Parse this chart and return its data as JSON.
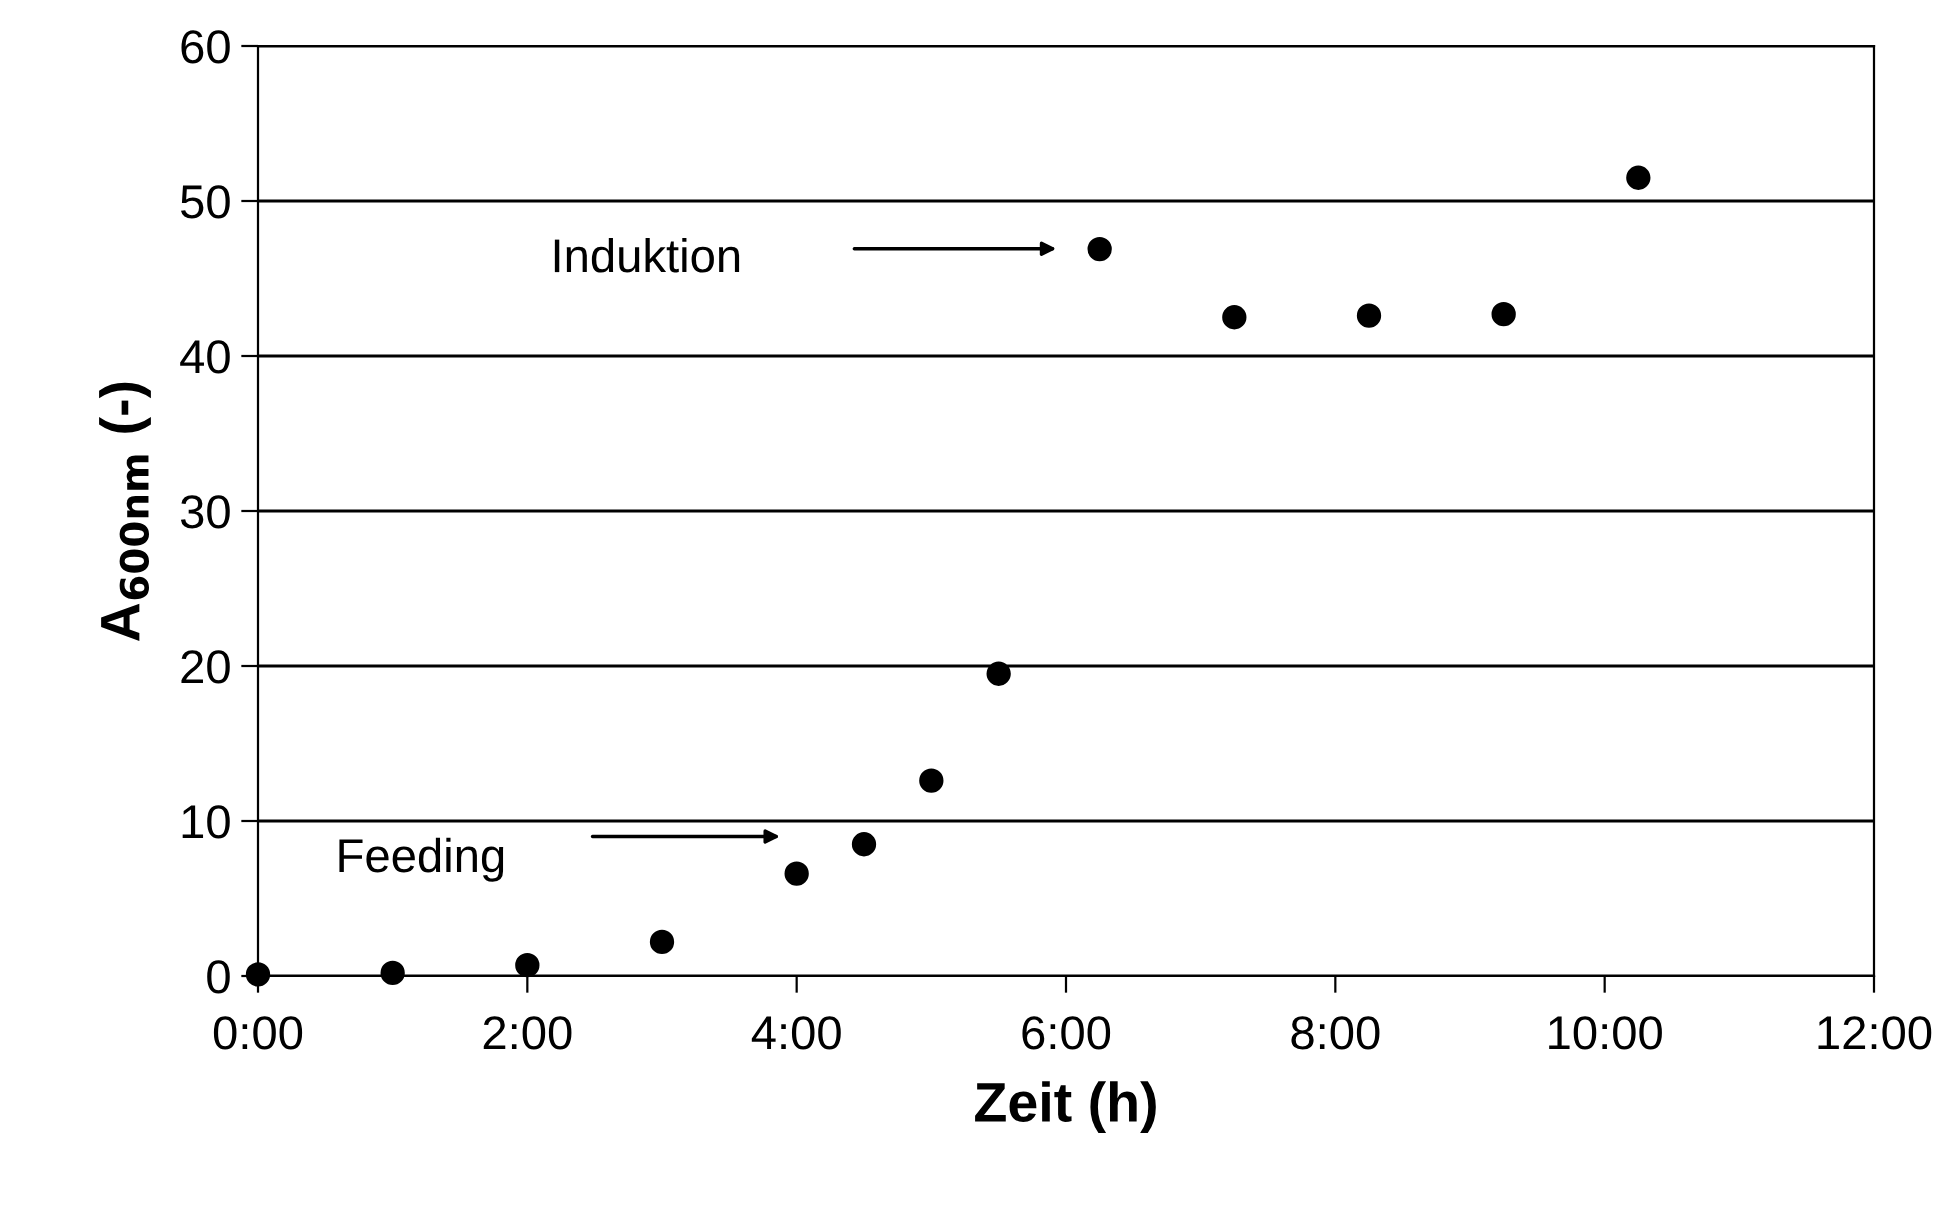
{
  "chart_data": {
    "type": "scatter",
    "xlabel": "Zeit (h)",
    "ylabel": "A$_{600nm}$ (-)",
    "x": [
      0,
      1.0,
      2.0,
      3.0,
      4.0,
      4.5,
      5.0,
      5.5,
      6.25,
      7.25,
      8.25,
      9.25,
      10.25
    ],
    "series": [
      {
        "color": "#000000",
        "values": [
          0.1,
          0.2,
          0.7,
          2.2,
          6.6,
          8.5,
          12.6,
          19.5,
          46.9,
          42.5,
          42.6,
          42.7,
          51.5
        ]
      }
    ],
    "marker": "circle",
    "xlim": [
      0,
      12
    ],
    "xticks": [
      {
        "value": 0,
        "label": "0:00"
      },
      {
        "value": 2,
        "label": "2:00"
      },
      {
        "value": 4,
        "label": "4:00"
      },
      {
        "value": 6,
        "label": "6:00"
      },
      {
        "value": 8,
        "label": "8:00"
      },
      {
        "value": 10,
        "label": "10:00"
      },
      {
        "value": 12,
        "label": "12:00"
      }
    ],
    "ylim": [
      0,
      60
    ],
    "yticks": [
      0,
      10,
      20,
      30,
      40,
      50,
      60
    ],
    "grid": "y",
    "annotations": [
      "Feeding",
      "Induktion"
    ]
  }
}
